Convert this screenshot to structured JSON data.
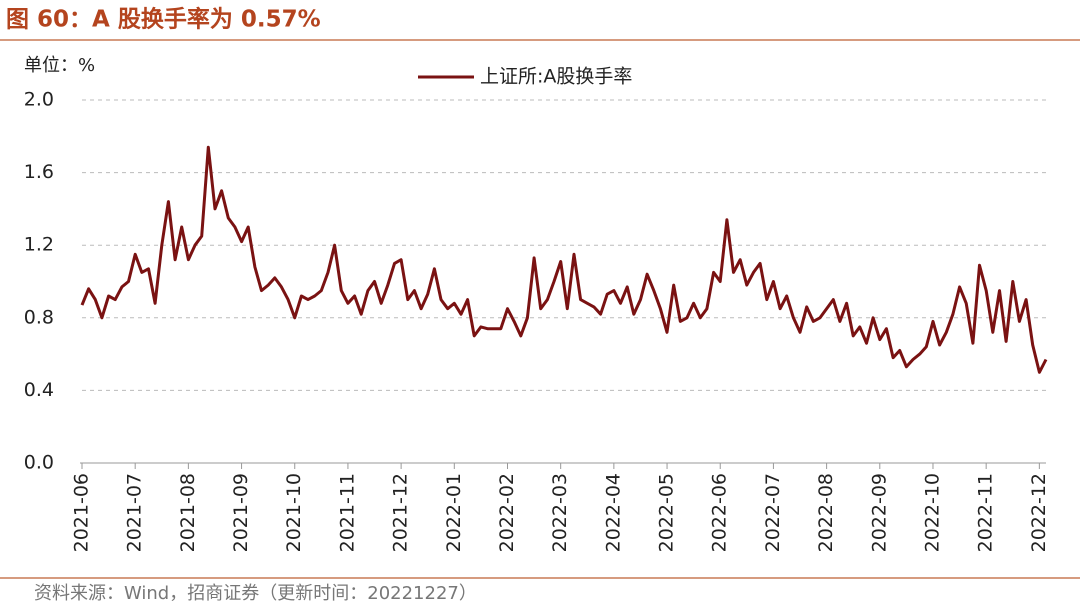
{
  "header": {
    "title": "图 60：A 股换手率为 0.57%"
  },
  "chart_data": {
    "type": "line",
    "unit_label": "单位：%",
    "categories": [
      "2021-06",
      null,
      null,
      null,
      null,
      null,
      null,
      null,
      "2021-07",
      null,
      null,
      null,
      null,
      null,
      null,
      null,
      "2021-08",
      null,
      null,
      null,
      null,
      null,
      null,
      null,
      "2021-09",
      null,
      null,
      null,
      null,
      null,
      null,
      null,
      "2021-10",
      null,
      null,
      null,
      null,
      null,
      null,
      null,
      "2021-11",
      null,
      null,
      null,
      null,
      null,
      null,
      null,
      "2021-12",
      null,
      null,
      null,
      null,
      null,
      null,
      null,
      "2022-01",
      null,
      null,
      null,
      null,
      null,
      null,
      null,
      "2022-02",
      null,
      null,
      null,
      null,
      null,
      null,
      null,
      "2022-03",
      null,
      null,
      null,
      null,
      null,
      null,
      null,
      "2022-04",
      null,
      null,
      null,
      null,
      null,
      null,
      null,
      "2022-05",
      null,
      null,
      null,
      null,
      null,
      null,
      null,
      "2022-06",
      null,
      null,
      null,
      null,
      null,
      null,
      null,
      "2022-07",
      null,
      null,
      null,
      null,
      null,
      null,
      null,
      "2022-08",
      null,
      null,
      null,
      null,
      null,
      null,
      null,
      "2022-09",
      null,
      null,
      null,
      null,
      null,
      null,
      null,
      "2022-10",
      null,
      null,
      null,
      null,
      null,
      null,
      null,
      "2022-11",
      null,
      null,
      null,
      null,
      null,
      null,
      null,
      "2022-12",
      null
    ],
    "series": [
      {
        "name": "上证所:A股换手率",
        "color": "#7a1212",
        "values": [
          0.87,
          0.96,
          0.9,
          0.8,
          0.92,
          0.9,
          0.97,
          1.0,
          1.15,
          1.05,
          1.07,
          0.88,
          1.2,
          1.44,
          1.12,
          1.3,
          1.12,
          1.2,
          1.25,
          1.74,
          1.4,
          1.5,
          1.35,
          1.3,
          1.22,
          1.3,
          1.08,
          0.95,
          0.98,
          1.02,
          0.97,
          0.9,
          0.8,
          0.92,
          0.9,
          0.92,
          0.95,
          1.05,
          1.2,
          0.95,
          0.88,
          0.92,
          0.82,
          0.95,
          1.0,
          0.88,
          0.98,
          1.1,
          1.12,
          0.9,
          0.95,
          0.85,
          0.93,
          1.07,
          0.9,
          0.85,
          0.88,
          0.82,
          0.9,
          0.7,
          0.75,
          0.74,
          0.74,
          0.74,
          0.85,
          0.78,
          0.7,
          0.8,
          1.13,
          0.85,
          0.9,
          1.0,
          1.11,
          0.85,
          1.15,
          0.9,
          0.88,
          0.86,
          0.82,
          0.93,
          0.95,
          0.88,
          0.97,
          0.82,
          0.9,
          1.04,
          0.95,
          0.85,
          0.72,
          0.98,
          0.78,
          0.8,
          0.88,
          0.8,
          0.85,
          1.05,
          1.0,
          1.34,
          1.05,
          1.12,
          0.98,
          1.05,
          1.1,
          0.9,
          1.0,
          0.85,
          0.92,
          0.8,
          0.72,
          0.86,
          0.78,
          0.8,
          0.85,
          0.9,
          0.78,
          0.88,
          0.7,
          0.75,
          0.66,
          0.8,
          0.68,
          0.74,
          0.58,
          0.62,
          0.53,
          0.57,
          0.6,
          0.64,
          0.78,
          0.65,
          0.72,
          0.82,
          0.97,
          0.88,
          0.66,
          1.09,
          0.95,
          0.72,
          0.95,
          0.67,
          1.0,
          0.78,
          0.9,
          0.65,
          0.5,
          0.57
        ]
      }
    ],
    "ylim": [
      0,
      2
    ],
    "yticks": [
      {
        "value": 0,
        "label": "0.0"
      },
      0.4,
      0.8,
      1.2,
      1.6,
      {
        "value": 2,
        "label": "2.0"
      }
    ],
    "grid": true,
    "legend": "top"
  },
  "footer": {
    "source": "资料来源：Wind，招商证券（更新时间：20221227）"
  }
}
